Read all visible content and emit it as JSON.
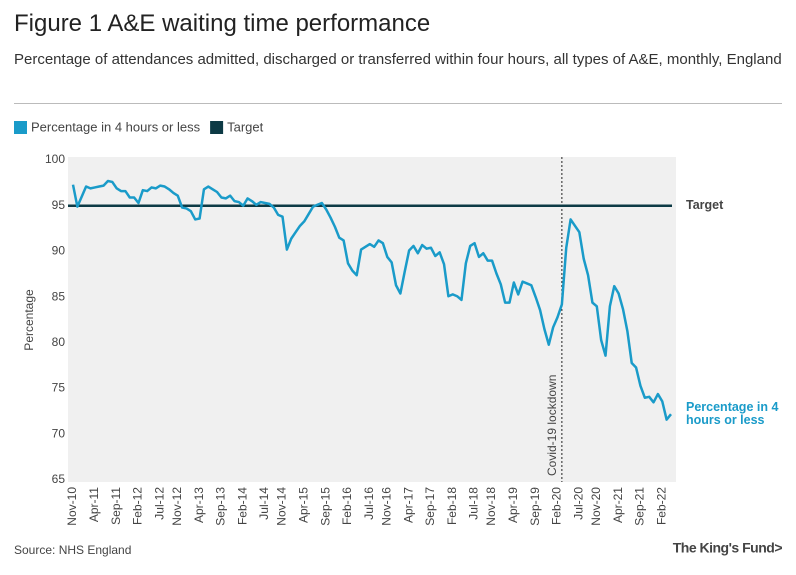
{
  "chart_data": {
    "type": "line",
    "title": "Figure 1 A&E waiting time performance",
    "subtitle": "Percentage of attendances admitted, discharged or transferred within four hours, all types of A&E, monthly, England",
    "ylabel": "Percentage",
    "source": "Source: NHS England",
    "brand": "The King's Fund>",
    "categories": [
      "Nov-10",
      null,
      null,
      null,
      null,
      "Apr-11",
      null,
      null,
      null,
      null,
      "Sep-11",
      null,
      null,
      null,
      null,
      "Feb-12",
      null,
      null,
      null,
      null,
      "Jul-12",
      null,
      null,
      null,
      "Nov-12",
      null,
      null,
      null,
      null,
      "Apr-13",
      null,
      null,
      null,
      null,
      "Sep-13",
      null,
      null,
      null,
      null,
      "Feb-14",
      null,
      null,
      null,
      null,
      "Jul-14",
      null,
      null,
      null,
      "Nov-14",
      null,
      null,
      null,
      null,
      "Apr-15",
      null,
      null,
      null,
      null,
      "Sep-15",
      null,
      null,
      null,
      null,
      "Feb-16",
      null,
      null,
      null,
      null,
      "Jul-16",
      null,
      null,
      null,
      "Nov-16",
      null,
      null,
      null,
      null,
      "Apr-17",
      null,
      null,
      null,
      null,
      "Sep-17",
      null,
      null,
      null,
      null,
      "Feb-18",
      null,
      null,
      null,
      null,
      "Jul-18",
      null,
      null,
      null,
      "Nov-18",
      null,
      null,
      null,
      null,
      "Apr-19",
      null,
      null,
      null,
      null,
      "Sep-19",
      null,
      null,
      null,
      null,
      "Feb-20",
      null,
      null,
      null,
      null,
      "Jul-20",
      null,
      null,
      null,
      "Nov-20",
      null,
      null,
      null,
      null,
      "Apr-21",
      null,
      null,
      null,
      null,
      "Sep-21",
      null,
      null,
      null,
      null,
      "Feb-22",
      null,
      null
    ],
    "series": [
      {
        "name": "Percentage in 4 hours or less",
        "color": "#1a9bc9",
        "values": [
          97.3,
          94.9,
          96.0,
          97.1,
          96.9,
          97.0,
          97.1,
          97.2,
          97.7,
          97.6,
          96.9,
          96.6,
          96.6,
          95.9,
          95.9,
          95.3,
          96.7,
          96.6,
          97.0,
          96.9,
          97.2,
          97.1,
          96.8,
          96.4,
          96.1,
          94.8,
          94.7,
          94.4,
          93.5,
          93.6,
          96.8,
          97.1,
          96.8,
          96.5,
          95.9,
          95.8,
          96.1,
          95.5,
          95.4,
          95.0,
          95.8,
          95.5,
          95.1,
          95.4,
          95.3,
          95.2,
          94.8,
          94.0,
          93.8,
          90.2,
          91.4,
          92.1,
          92.8,
          93.3,
          94.1,
          94.9,
          95.1,
          95.3,
          94.6,
          93.7,
          92.7,
          91.5,
          91.2,
          88.7,
          87.9,
          87.4,
          90.2,
          90.5,
          90.8,
          90.5,
          91.2,
          90.9,
          89.4,
          88.8,
          86.3,
          85.4,
          87.8,
          90.1,
          90.6,
          89.8,
          90.7,
          90.3,
          90.4,
          89.5,
          89.9,
          88.6,
          85.1,
          85.3,
          85.1,
          84.7,
          88.7,
          90.6,
          90.9,
          89.4,
          89.8,
          89.0,
          89.0,
          87.6,
          86.4,
          84.4,
          84.4,
          86.6,
          85.3,
          86.7,
          86.5,
          86.3,
          85.0,
          83.6,
          81.5,
          79.8,
          81.7,
          82.8,
          84.2,
          90.4,
          93.5,
          92.8,
          92.1,
          89.2,
          87.4,
          84.4,
          84.0,
          80.3,
          78.6,
          84.0,
          86.2,
          85.4,
          83.7,
          81.3,
          77.8,
          77.3,
          75.3,
          74.0,
          74.1,
          73.5,
          74.4,
          73.6,
          71.6,
          72.2
        ]
      }
    ],
    "reference_lines": [
      {
        "name": "Target",
        "value": 95,
        "color": "#0d3a45"
      }
    ],
    "annotations": [
      {
        "text": "Covid-19 lockdown",
        "x": 112
      }
    ],
    "ylim": [
      65,
      100
    ],
    "yticks": [
      65,
      70,
      75,
      80,
      85,
      90,
      95,
      100
    ],
    "grid": false
  }
}
